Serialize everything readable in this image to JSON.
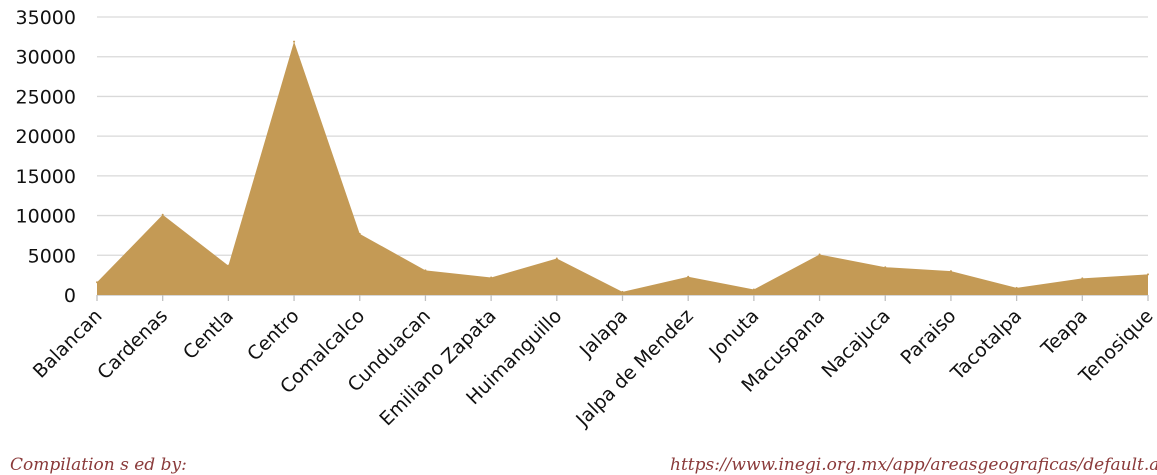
{
  "chart_data": {
    "type": "area",
    "categories": [
      "Balancan",
      "Cardenas",
      "Centla",
      "Centro",
      "Comalcalco",
      "Cunduacan",
      "Emiliano Zapata",
      "Huimanguillo",
      "Jalapa",
      "Jalpa de Mendez",
      "Jonuta",
      "Macuspana",
      "Nacajuca",
      "Paraiso",
      "Tacotalpa",
      "Teapa",
      "Tenosique"
    ],
    "series": [
      {
        "values": [
          1600,
          10100,
          3700,
          31900,
          7700,
          3100,
          2200,
          4600,
          400,
          2300,
          700,
          5100,
          3500,
          3000,
          900,
          2100,
          2600
        ]
      }
    ],
    "ylim": [
      0,
      35000
    ],
    "yticks": [
      0,
      5000,
      10000,
      15000,
      20000,
      25000,
      30000,
      35000
    ],
    "grid": true,
    "xlabel": "",
    "ylabel": "",
    "colors": {
      "fill": "#c49a55",
      "grid": "#d9d9d9"
    }
  },
  "footer": {
    "left": "Compilation s        ed   by: ",
    "right": "https://www.inegi.org.mx/app/areasgeograficas/default.aspx#data"
  }
}
